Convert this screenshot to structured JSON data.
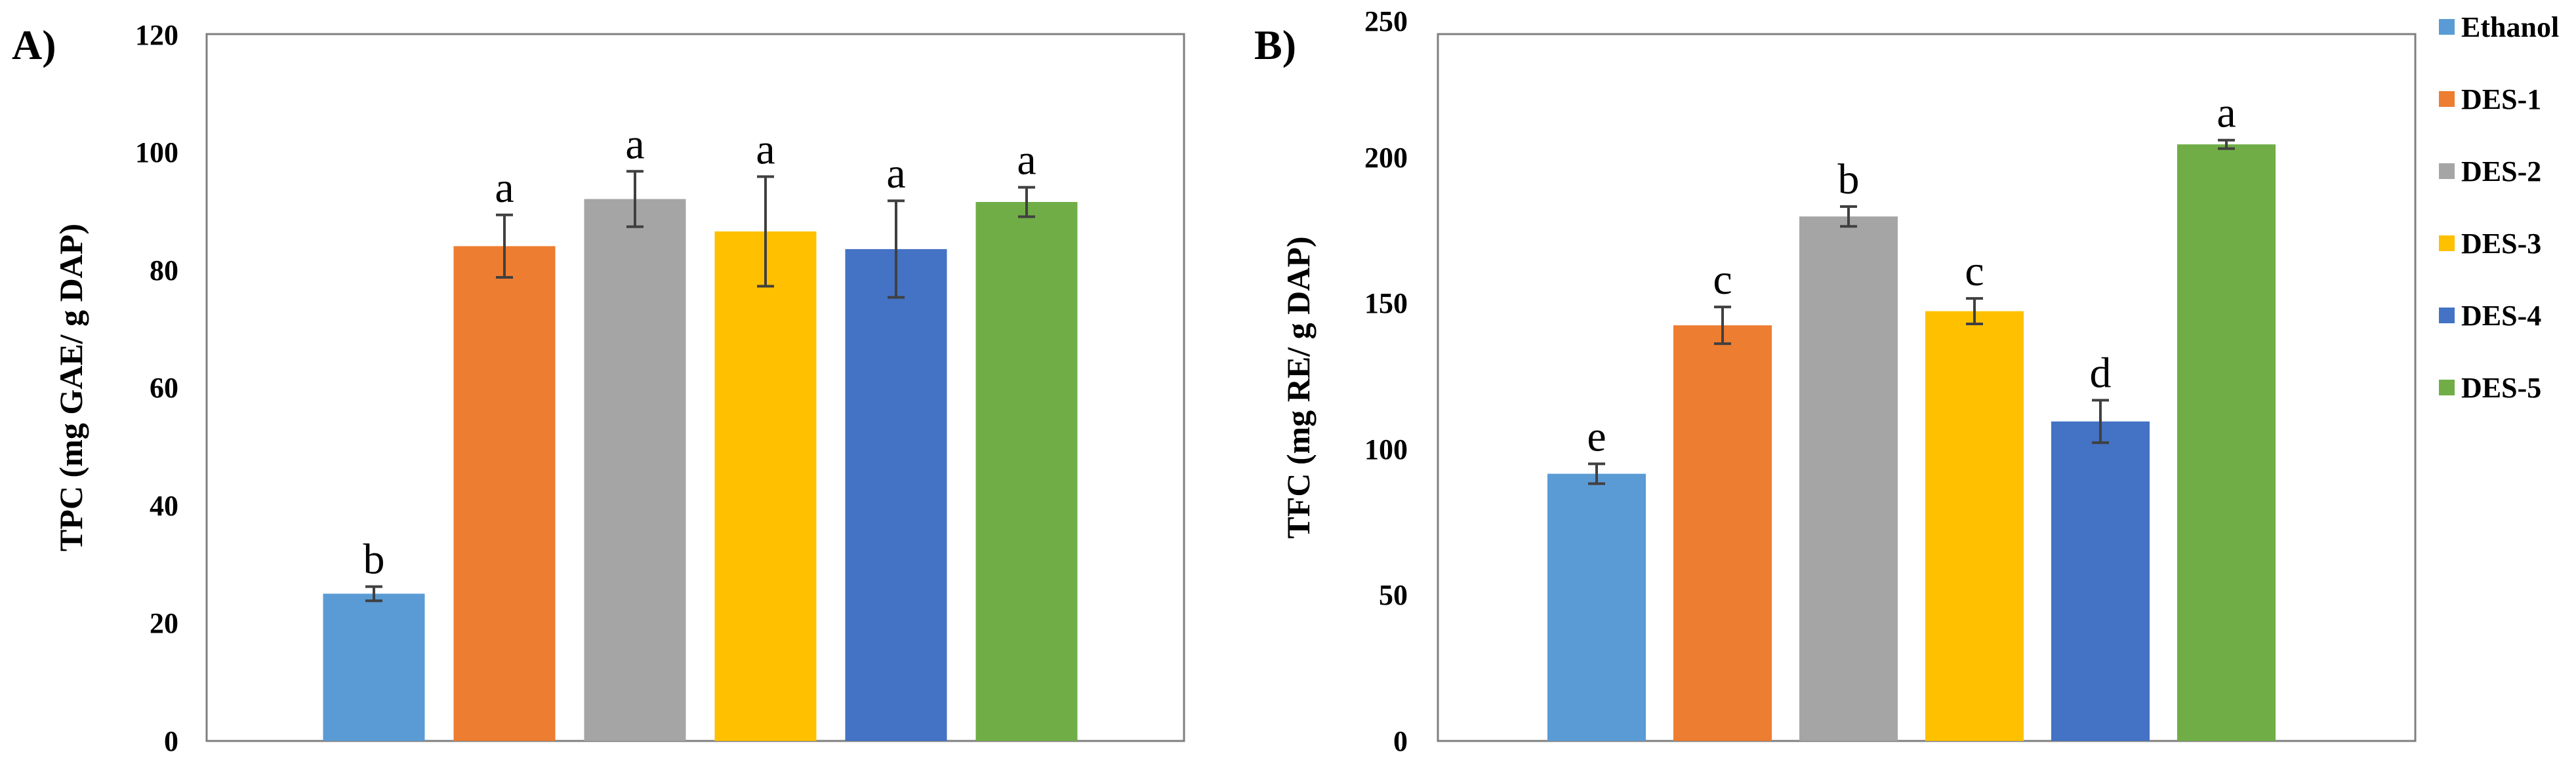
{
  "chart_data": [
    {
      "type": "bar",
      "panel_label": "A)",
      "ylabel": "TPC (mg GAE/ g DAP)",
      "ylim": [
        0,
        120
      ],
      "yticks": [
        "0",
        "20",
        "40",
        "60",
        "80",
        "100",
        "120"
      ],
      "categories": [
        "Ethanol",
        "DES-1",
        "DES-2",
        "DES-3",
        "DES-4",
        "DES-5"
      ],
      "values": [
        25,
        84,
        92,
        86.5,
        83.5,
        91.5
      ],
      "errors": [
        1.2,
        5.3,
        4.7,
        9.3,
        8.2,
        2.5
      ],
      "significance": [
        "b",
        "a",
        "a",
        "a",
        "a",
        "a"
      ]
    },
    {
      "type": "bar",
      "panel_label": "B)",
      "ylabel": "TFC (mg RE/ g DAP)",
      "ylim": [
        0,
        250
      ],
      "yticks": [
        "0",
        "50",
        "100",
        "150",
        "200",
        "250"
      ],
      "categories": [
        "Ethanol",
        "DES-1",
        "DES-2",
        "DES-3",
        "DES-4",
        "DES-5"
      ],
      "values": [
        94.5,
        147,
        185.5,
        152,
        113,
        211
      ],
      "errors": [
        3.5,
        6.5,
        3.5,
        4.5,
        7.5,
        1.5
      ],
      "significance": [
        "e",
        "c",
        "b",
        "c",
        "d",
        "a"
      ]
    }
  ],
  "legend": {
    "entries": [
      "Ethanol",
      "DES-1",
      "DES-2",
      "DES-3",
      "DES-4",
      "DES-5"
    ]
  },
  "colors": {
    "series": [
      "#5B9BD5",
      "#ED7D31",
      "#A5A5A5",
      "#FFC000",
      "#4472C4",
      "#70AD47"
    ],
    "axis": "#808080",
    "frame": "#7f7f7f",
    "error_bar": "#404040"
  }
}
